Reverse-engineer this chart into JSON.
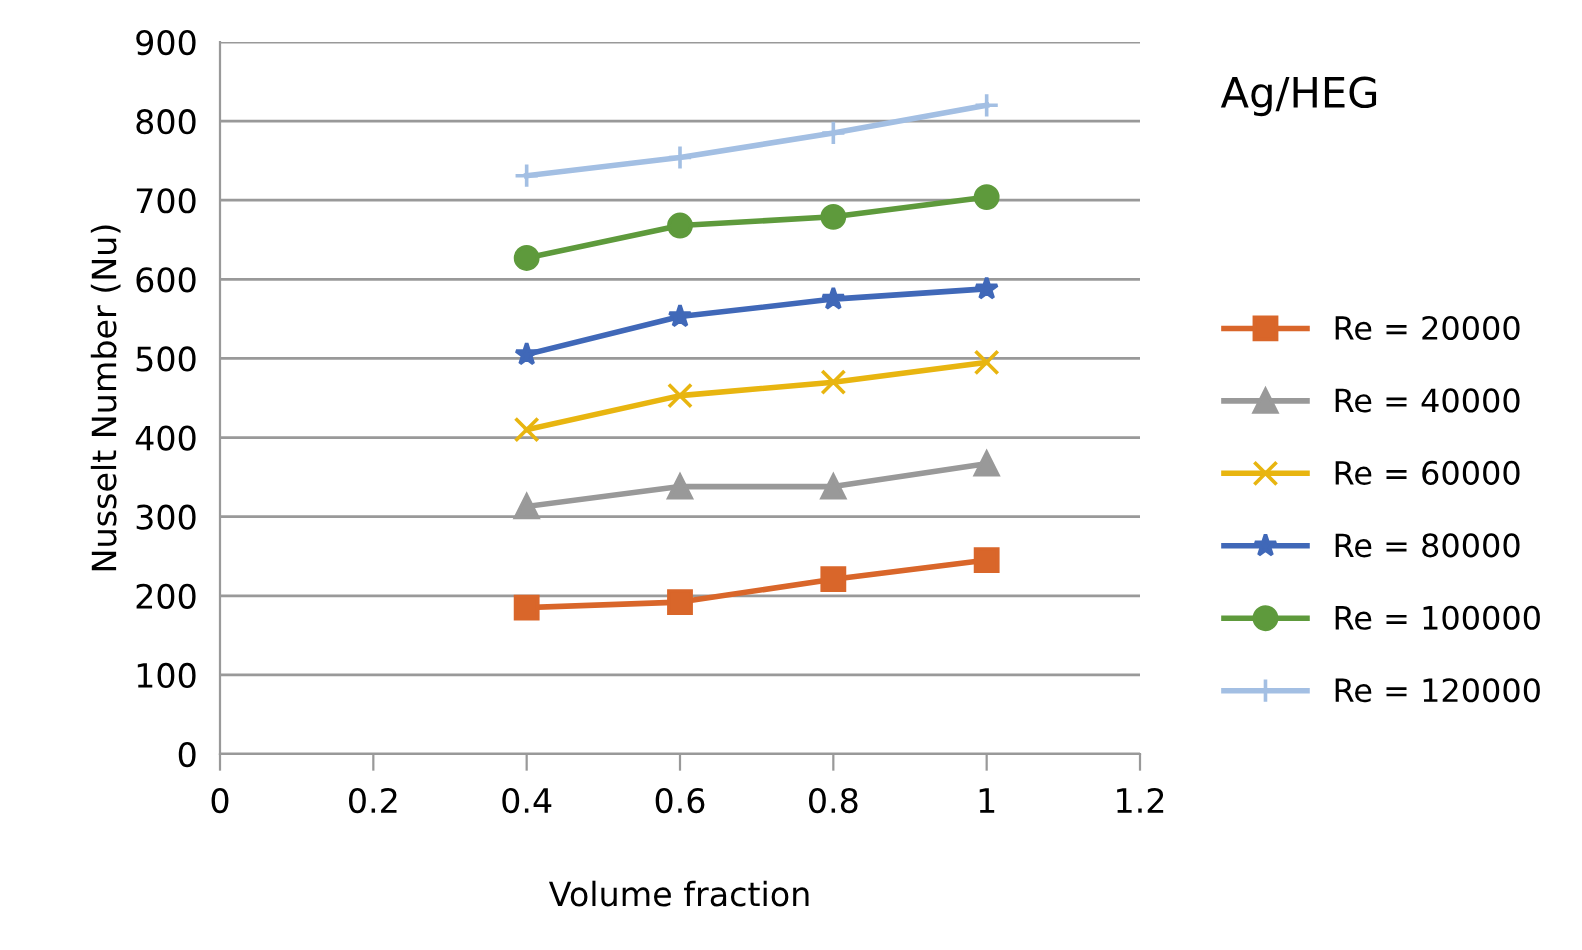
{
  "chart_data": {
    "type": "line",
    "title": "Ag/HEG",
    "xlabel": "Volume fraction",
    "ylabel": "Nusselt Number (Nu)",
    "x": [
      0.4,
      0.6,
      0.8,
      1
    ],
    "series": [
      {
        "name": "Re = 20000",
        "color": "#d9662a",
        "marker": "square",
        "values": [
          185,
          192,
          221,
          245
        ]
      },
      {
        "name": "Re = 40000",
        "color": "#999999",
        "marker": "triangle",
        "values": [
          313,
          338,
          338,
          367
        ]
      },
      {
        "name": "Re = 60000",
        "color": "#e8b510",
        "marker": "cross",
        "values": [
          410,
          453,
          470,
          495
        ]
      },
      {
        "name": "Re = 80000",
        "color": "#4068b8",
        "marker": "star",
        "values": [
          505,
          553,
          575,
          588
        ]
      },
      {
        "name": "Re = 100000",
        "color": "#5e9a3c",
        "marker": "circle",
        "values": [
          627,
          668,
          679,
          704
        ]
      },
      {
        "name": "Re = 120000",
        "color": "#a3bfe3",
        "marker": "plus",
        "values": [
          731,
          754,
          785,
          820
        ]
      }
    ],
    "xlim": [
      0,
      1.2
    ],
    "xticks": [
      0,
      0.2,
      0.4,
      0.6,
      0.8,
      1,
      1.2
    ],
    "ylim": [
      0,
      900
    ],
    "yticks": [
      0,
      100,
      200,
      300,
      400,
      500,
      600,
      700,
      800,
      900
    ],
    "grid": "y",
    "legend": "right",
    "line_style": "solid"
  }
}
